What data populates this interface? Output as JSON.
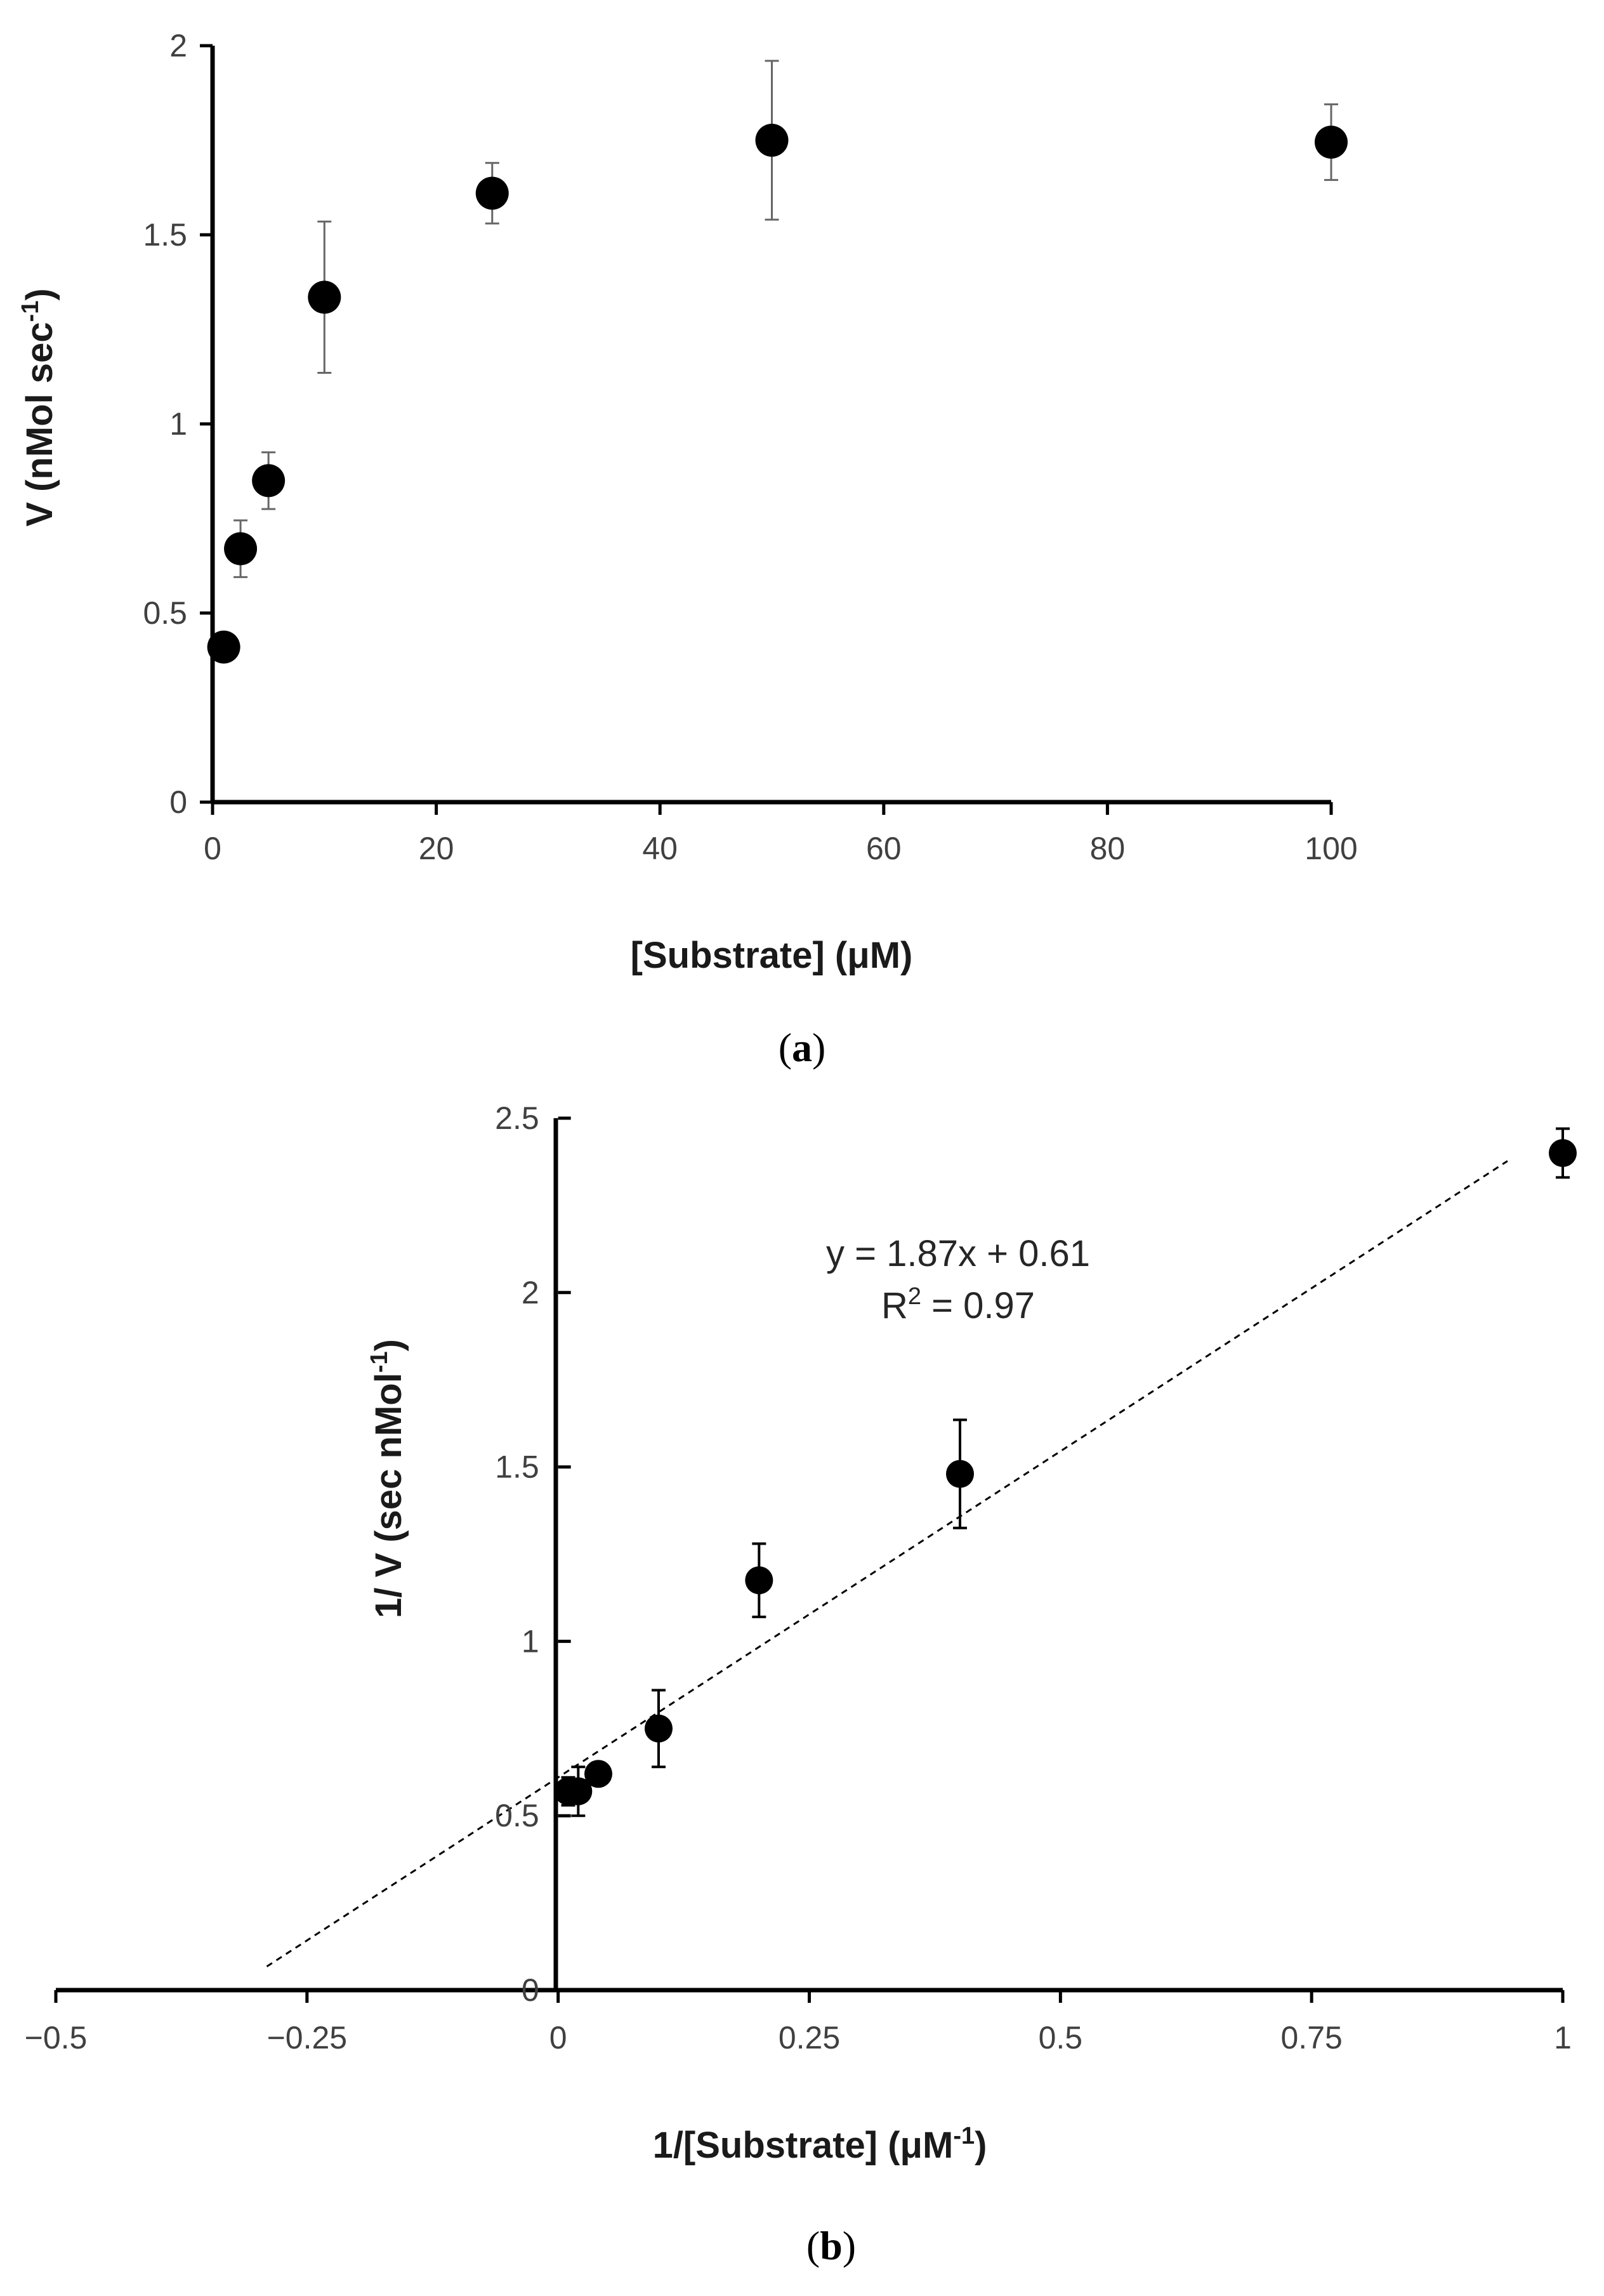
{
  "chart_data": [
    {
      "type": "scatter",
      "panel_label": "a",
      "xlabel": "[Substrate] (μM)",
      "ylabel_main": "V (nMol sec",
      "ylabel_sup": "-1",
      "ylabel_end": ")",
      "xlim": [
        0,
        100
      ],
      "ylim": [
        0,
        2
      ],
      "xticks": [
        0,
        20,
        40,
        60,
        80,
        100
      ],
      "yticks": [
        0,
        0.5,
        1,
        1.5,
        2
      ],
      "ytick_labels": [
        "0",
        "0.5",
        "1",
        "1.5",
        "2"
      ],
      "x": [
        1,
        2.5,
        5,
        10,
        25,
        50,
        100
      ],
      "y": [
        0.41,
        0.67,
        0.85,
        1.335,
        1.61,
        1.75,
        1.745
      ],
      "error": [
        0.0,
        0.075,
        0.075,
        0.2,
        0.08,
        0.21,
        0.1
      ]
    },
    {
      "type": "scatter",
      "panel_label": "b",
      "xlabel_main": "1/[Substrate] (μM",
      "xlabel_sup": "-1",
      "xlabel_end": ")",
      "ylabel_main": "1/ V (sec nMol",
      "ylabel_sup": "-1",
      "ylabel_end": ")",
      "xlim": [
        -0.5,
        1
      ],
      "ylim": [
        0,
        2.5
      ],
      "xticks": [
        -0.5,
        -0.25,
        0,
        0.25,
        0.5,
        0.75,
        1
      ],
      "xtick_labels": [
        "−0.5",
        "−0.25",
        "0",
        "0.25",
        "0.5",
        "0.75",
        "1"
      ],
      "yticks": [
        0,
        0.5,
        1,
        1.5,
        2,
        2.5
      ],
      "ytick_labels": [
        "0",
        "0.5",
        "1",
        "1.5",
        "2",
        "2.5"
      ],
      "x": [
        0.01,
        0.02,
        0.04,
        0.1,
        0.2,
        0.4,
        1.0
      ],
      "y": [
        0.57,
        0.57,
        0.62,
        0.75,
        1.175,
        1.48,
        2.4
      ],
      "error": [
        0.04,
        0.07,
        0.03,
        0.11,
        0.105,
        0.155,
        0.07
      ],
      "trendline": {
        "slope": 1.87,
        "intercept": 0.61,
        "x_start": -0.29,
        "x_end": 0.945,
        "style": "dashed"
      },
      "equation": "y = 1.87x + 0.61",
      "r2_main": "R",
      "r2_sup": "2",
      "r2_end": " = 0.97"
    }
  ]
}
